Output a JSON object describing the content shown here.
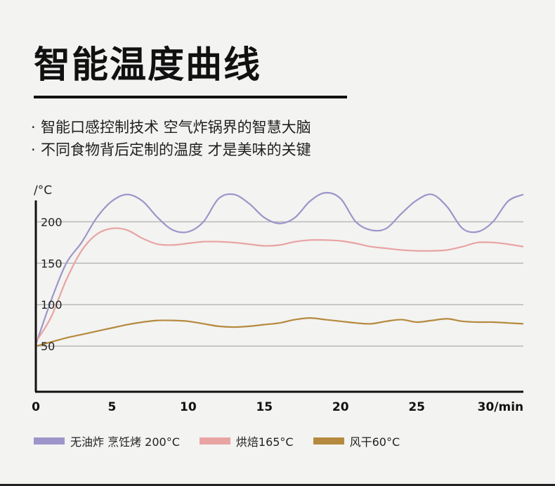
{
  "header": {
    "title": "智能温度曲线",
    "bullets": [
      "智能口感控制技术 空气炸锅界的智慧大脑",
      "不同食物背后定制的温度 才是美味的关键"
    ]
  },
  "chart_data": {
    "type": "line",
    "ylabel": "/°C",
    "xlabel_end": "30/min",
    "x_ticks": [
      0,
      5,
      10,
      15,
      20,
      25,
      30
    ],
    "x_tick_labels": [
      "0",
      "5",
      "10",
      "15",
      "20",
      "25",
      "30/min"
    ],
    "y_ticks": [
      50,
      100,
      150,
      200
    ],
    "ylim": [
      -5,
      230
    ],
    "xlim": [
      0,
      32
    ],
    "grid": "horizontal",
    "legend_position": "bottom",
    "series": [
      {
        "name": "无油炸 烹饪烤 200°C",
        "color": "#9d95c9",
        "x": [
          0,
          1,
          2,
          3,
          4,
          5,
          6,
          7,
          8,
          9,
          10,
          11,
          12,
          13,
          14,
          15,
          16,
          17,
          18,
          19,
          20,
          21,
          22,
          23,
          24,
          25,
          26,
          27,
          28,
          29,
          30,
          31,
          32
        ],
        "y": [
          52,
          105,
          150,
          175,
          205,
          225,
          233,
          225,
          205,
          190,
          188,
          200,
          228,
          233,
          222,
          205,
          198,
          205,
          225,
          235,
          228,
          200,
          190,
          192,
          210,
          226,
          233,
          218,
          192,
          188,
          200,
          225,
          233
        ]
      },
      {
        "name": "烘焙165°C",
        "color": "#e8a3a3",
        "x": [
          0,
          1,
          2,
          3,
          4,
          5,
          6,
          7,
          8,
          9,
          10,
          11,
          12,
          13,
          14,
          15,
          16,
          17,
          18,
          19,
          20,
          21,
          22,
          23,
          24,
          25,
          26,
          27,
          28,
          29,
          30,
          31,
          32
        ],
        "y": [
          55,
          85,
          130,
          165,
          185,
          192,
          190,
          180,
          173,
          172,
          174,
          176,
          176,
          175,
          173,
          171,
          172,
          176,
          178,
          178,
          177,
          174,
          170,
          168,
          166,
          165,
          165,
          166,
          170,
          175,
          175,
          173,
          170
        ]
      },
      {
        "name": "风干60°C",
        "color": "#b58a3e",
        "x": [
          0,
          1,
          2,
          3,
          4,
          5,
          6,
          7,
          8,
          9,
          10,
          11,
          12,
          13,
          14,
          15,
          16,
          17,
          18,
          19,
          20,
          21,
          22,
          23,
          24,
          25,
          26,
          27,
          28,
          29,
          30,
          31,
          32
        ],
        "y": [
          50,
          55,
          60,
          64,
          68,
          72,
          76,
          79,
          81,
          81,
          80,
          77,
          74,
          73,
          74,
          76,
          78,
          82,
          84,
          82,
          80,
          78,
          77,
          80,
          82,
          79,
          81,
          83,
          80,
          79,
          79,
          78,
          77
        ]
      }
    ]
  }
}
